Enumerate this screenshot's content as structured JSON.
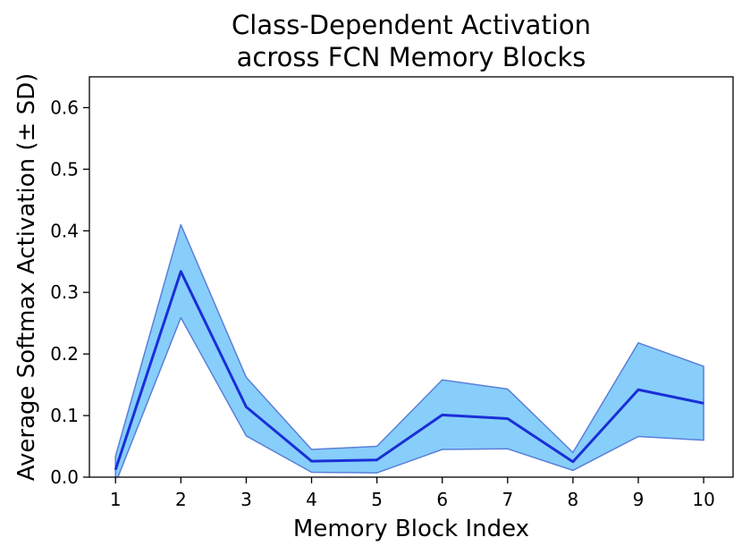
{
  "chart_data": {
    "type": "line",
    "title_lines": [
      "Class-Dependent Activation",
      "across FCN Memory Blocks"
    ],
    "xlabel": "Memory Block Index",
    "ylabel": "Average Softmax Activation (± SD)",
    "x": [
      1,
      2,
      3,
      4,
      5,
      6,
      7,
      8,
      9,
      10
    ],
    "x_ticks": [
      "1",
      "2",
      "3",
      "4",
      "5",
      "6",
      "7",
      "8",
      "9",
      "10"
    ],
    "y_ticks": [
      "0.0",
      "0.1",
      "0.2",
      "0.3",
      "0.4",
      "0.5",
      "0.6"
    ],
    "xlim": [
      0.6,
      10.45
    ],
    "ylim": [
      0.0,
      0.65
    ],
    "grid": false,
    "series": [
      {
        "values": [
          0.012,
          0.334,
          0.114,
          0.026,
          0.028,
          0.101,
          0.095,
          0.025,
          0.142,
          0.12
        ],
        "lower": [
          -0.01,
          0.259,
          0.067,
          0.008,
          0.007,
          0.045,
          0.046,
          0.011,
          0.066,
          0.06
        ],
        "upper": [
          0.034,
          0.41,
          0.162,
          0.045,
          0.05,
          0.158,
          0.143,
          0.04,
          0.218,
          0.18
        ],
        "line_color": "#1a2fd6",
        "band_fill": "#87cefa",
        "band_edge": "#5a7fd8"
      }
    ]
  }
}
